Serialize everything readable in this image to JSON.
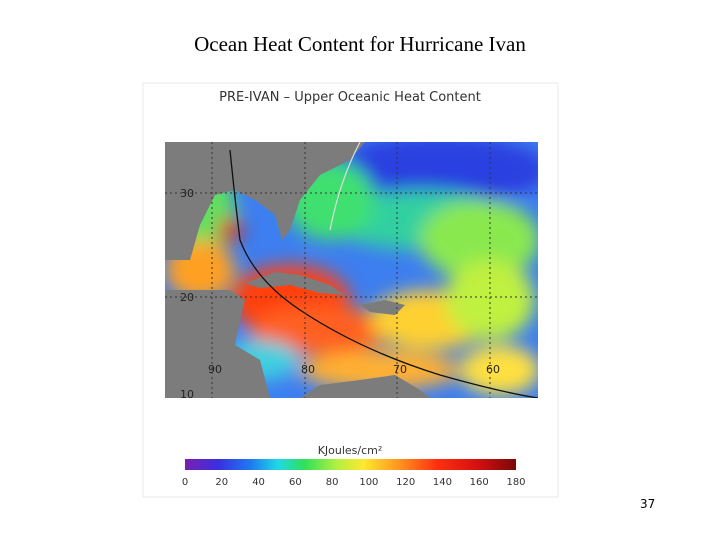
{
  "slide": {
    "title": "Ocean Heat Content for Hurricane Ivan",
    "page_number": "37"
  },
  "figure": {
    "title": "PRE-IVAN – Upper Oceanic Heat Content",
    "latitude_labels": [
      "30",
      "20",
      "10"
    ],
    "longitude_labels": [
      "90",
      "80",
      "70",
      "60"
    ],
    "colorbar": {
      "label": "KJoules/cm²",
      "ticks": [
        0,
        20,
        40,
        60,
        80,
        100,
        120,
        140,
        160,
        180
      ]
    }
  }
}
